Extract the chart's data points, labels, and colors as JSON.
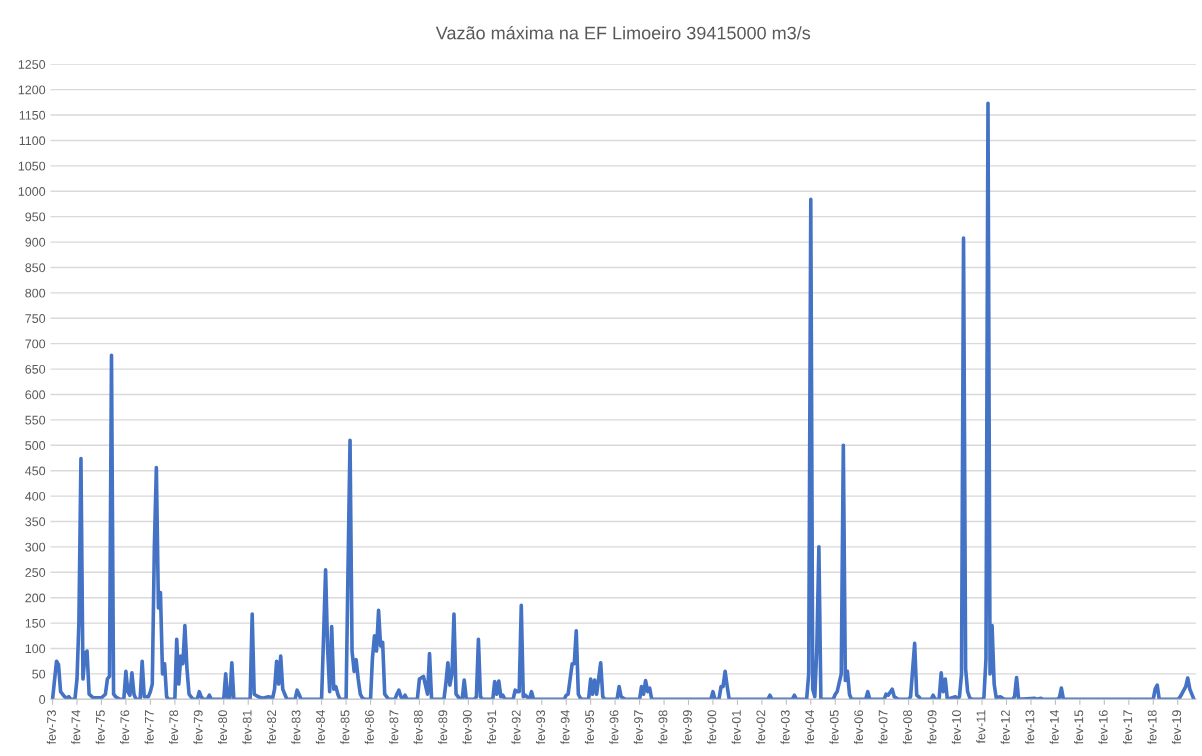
{
  "chart_data": {
    "type": "line",
    "title": "Vazão máxima na EF Limoeiro 39415000 m3/s",
    "x": [
      "1973-02",
      "1973-04",
      "1973-05",
      "1973-06",
      "1973-08",
      "1973-09",
      "1973-10",
      "1973-11",
      "1974-01",
      "1974-02",
      "1974-03",
      "1974-04",
      "1974-05",
      "1974-06",
      "1974-07",
      "1974-08",
      "1974-10",
      "1975-02",
      "1975-04",
      "1975-05",
      "1975-06",
      "1975-07",
      "1975-08",
      "1975-09",
      "1975-11",
      "1976-01",
      "1976-02",
      "1976-03",
      "1976-04",
      "1976-05",
      "1976-06",
      "1976-07",
      "1976-09",
      "1976-10",
      "1976-11",
      "1977-01",
      "1977-02",
      "1977-03",
      "1977-04",
      "1977-05",
      "1977-06",
      "1977-07",
      "1977-08",
      "1977-09",
      "1977-10",
      "1977-11",
      "1978-02",
      "1978-03",
      "1978-04",
      "1978-05",
      "1978-06",
      "1978-07",
      "1978-08",
      "1978-09",
      "1978-10",
      "1978-11",
      "1979-01",
      "1979-02",
      "1979-03",
      "1979-04",
      "1979-06",
      "1979-07",
      "1979-08",
      "1980-02",
      "1980-03",
      "1980-04",
      "1980-05",
      "1980-06",
      "1980-07",
      "1981-03",
      "1981-04",
      "1981-05",
      "1981-07",
      "1981-09",
      "1981-12",
      "1982-02",
      "1982-03",
      "1982-04",
      "1982-05",
      "1982-06",
      "1982-07",
      "1982-08",
      "1982-09",
      "1983-01",
      "1983-02",
      "1983-03",
      "1983-04",
      "1984-02",
      "1984-03",
      "1984-04",
      "1984-05",
      "1984-06",
      "1984-07",
      "1984-08",
      "1984-09",
      "1984-10",
      "1984-11",
      "1985-02",
      "1985-03",
      "1985-04",
      "1985-05",
      "1985-06",
      "1985-07",
      "1985-08",
      "1985-09",
      "1985-10",
      "1985-11",
      "1986-02",
      "1986-03",
      "1986-04",
      "1986-05",
      "1986-06",
      "1986-07",
      "1986-08",
      "1986-09",
      "1986-10",
      "1986-11",
      "1987-02",
      "1987-03",
      "1987-04",
      "1987-05",
      "1987-06",
      "1987-07",
      "1987-08",
      "1988-01",
      "1988-02",
      "1988-04",
      "1988-06",
      "1988-07",
      "1988-08",
      "1989-02",
      "1989-03",
      "1989-04",
      "1989-05",
      "1989-06",
      "1989-07",
      "1989-08",
      "1989-09",
      "1989-10",
      "1989-11",
      "1989-12",
      "1990-01",
      "1990-05",
      "1990-06",
      "1990-07",
      "1990-08",
      "1990-09",
      "1991-02",
      "1991-03",
      "1991-04",
      "1991-05",
      "1991-06",
      "1991-07",
      "1991-08",
      "1991-12",
      "1992-01",
      "1992-02",
      "1992-03",
      "1992-04",
      "1992-05",
      "1992-06",
      "1992-08",
      "1992-09",
      "1992-10",
      "1994-01",
      "1994-02",
      "1994-03",
      "1994-05",
      "1994-06",
      "1994-07",
      "1994-08",
      "1994-09",
      "1994-10",
      "1995-01",
      "1995-02",
      "1995-03",
      "1995-04",
      "1995-05",
      "1995-07",
      "1995-08",
      "1995-09",
      "1996-03",
      "1996-04",
      "1996-05",
      "1996-07",
      "1997-02",
      "1997-03",
      "1997-04",
      "1997-05",
      "1997-06",
      "1997-07",
      "1997-08",
      "2000-01",
      "2000-02",
      "2000-03",
      "2000-05",
      "2000-06",
      "2000-07",
      "2000-08",
      "2000-09",
      "2000-10",
      "2002-05",
      "2002-06",
      "2002-07",
      "2003-05",
      "2003-06",
      "2003-07",
      "2003-12",
      "2004-01",
      "2004-02",
      "2004-03",
      "2004-04",
      "2004-05",
      "2004-06",
      "2004-07",
      "2005-01",
      "2005-02",
      "2005-03",
      "2005-05",
      "2005-06",
      "2005-07",
      "2005-08",
      "2005-09",
      "2005-10",
      "2006-05",
      "2006-06",
      "2006-07",
      "2007-02",
      "2007-03",
      "2007-04",
      "2007-06",
      "2007-07",
      "2007-09",
      "2008-02",
      "2008-03",
      "2008-05",
      "2008-06",
      "2008-07",
      "2008-08",
      "2009-01",
      "2009-02",
      "2009-03",
      "2009-05",
      "2009-06",
      "2009-07",
      "2009-08",
      "2009-09",
      "2010-01",
      "2010-02",
      "2010-03",
      "2010-04",
      "2010-05",
      "2010-06",
      "2010-07",
      "2010-08",
      "2010-09",
      "2011-02",
      "2011-03",
      "2011-04",
      "2011-05",
      "2011-06",
      "2011-07",
      "2011-08",
      "2011-09",
      "2011-11",
      "2012-01",
      "2012-05",
      "2012-06",
      "2012-07",
      "2012-08",
      "2013-04",
      "2013-05",
      "2013-07",
      "2013-08",
      "2014-03",
      "2014-04",
      "2014-05",
      "2014-06",
      "2018-02",
      "2018-03",
      "2018-04",
      "2018-05",
      "2019-02",
      "2019-03",
      "2019-04",
      "2019-06",
      "2019-07",
      "2019-08",
      "2019-10"
    ],
    "series": [
      {
        "color": "#4472c4",
        "values": [
          0,
          75,
          68,
          15,
          5,
          2,
          5,
          0,
          0,
          40,
          150,
          474,
          40,
          90,
          95,
          10,
          3,
          3,
          10,
          40,
          45,
          677,
          10,
          5,
          0,
          0,
          55,
          15,
          8,
          52,
          10,
          0,
          0,
          75,
          5,
          5,
          15,
          30,
          300,
          456,
          180,
          210,
          50,
          70,
          5,
          0,
          0,
          118,
          30,
          85,
          70,
          145,
          60,
          10,
          5,
          0,
          0,
          15,
          5,
          0,
          0,
          8,
          0,
          0,
          50,
          0,
          0,
          72,
          0,
          0,
          168,
          10,
          5,
          2,
          5,
          3,
          20,
          75,
          30,
          85,
          20,
          10,
          0,
          0,
          18,
          10,
          0,
          0,
          120,
          255,
          100,
          15,
          143,
          20,
          25,
          10,
          0,
          0,
          250,
          510,
          95,
          55,
          78,
          40,
          10,
          3,
          0,
          0,
          80,
          125,
          95,
          175,
          105,
          112,
          10,
          5,
          0,
          0,
          10,
          18,
          5,
          0,
          8,
          0,
          0,
          40,
          45,
          10,
          90,
          0,
          0,
          30,
          72,
          28,
          50,
          168,
          10,
          5,
          0,
          0,
          38,
          0,
          0,
          5,
          118,
          5,
          0,
          0,
          35,
          10,
          36,
          5,
          8,
          0,
          0,
          18,
          15,
          15,
          185,
          5,
          8,
          0,
          15,
          0,
          0,
          8,
          10,
          70,
          70,
          135,
          10,
          2,
          0,
          0,
          40,
          10,
          38,
          10,
          72,
          5,
          0,
          0,
          25,
          5,
          0,
          0,
          25,
          10,
          37,
          15,
          22,
          0,
          0,
          15,
          0,
          0,
          25,
          25,
          55,
          25,
          0,
          0,
          8,
          0,
          0,
          8,
          0,
          0,
          50,
          984,
          20,
          5,
          100,
          300,
          0,
          0,
          10,
          15,
          50,
          500,
          37,
          55,
          10,
          0,
          0,
          15,
          0,
          0,
          10,
          8,
          20,
          5,
          0,
          0,
          5,
          110,
          8,
          5,
          0,
          0,
          8,
          0,
          0,
          52,
          15,
          40,
          0,
          5,
          0,
          5,
          50,
          908,
          60,
          15,
          3,
          0,
          0,
          3,
          80,
          1173,
          50,
          145,
          30,
          3,
          5,
          0,
          0,
          5,
          43,
          0,
          2,
          0,
          2,
          0,
          0,
          3,
          22,
          0,
          0,
          20,
          28,
          0,
          0,
          3,
          10,
          25,
          42,
          20,
          0
        ]
      }
    ],
    "xlim": [
      "1973-01",
      "2019-11"
    ],
    "xticks": [
      {
        "value": "1973-02",
        "label": "fev-73"
      },
      {
        "value": "1974-02",
        "label": "fev-74"
      },
      {
        "value": "1975-02",
        "label": "fev-75"
      },
      {
        "value": "1976-02",
        "label": "fev-76"
      },
      {
        "value": "1977-02",
        "label": "fev-77"
      },
      {
        "value": "1978-02",
        "label": "fev-78"
      },
      {
        "value": "1979-02",
        "label": "fev-79"
      },
      {
        "value": "1980-02",
        "label": "fev-80"
      },
      {
        "value": "1981-02",
        "label": "fev-81"
      },
      {
        "value": "1982-02",
        "label": "fev-82"
      },
      {
        "value": "1983-02",
        "label": "fev-83"
      },
      {
        "value": "1984-02",
        "label": "fev-84"
      },
      {
        "value": "1985-02",
        "label": "fev-85"
      },
      {
        "value": "1986-02",
        "label": "fev-86"
      },
      {
        "value": "1987-02",
        "label": "fev-87"
      },
      {
        "value": "1988-02",
        "label": "fev-88"
      },
      {
        "value": "1989-02",
        "label": "fev-89"
      },
      {
        "value": "1990-02",
        "label": "fev-90"
      },
      {
        "value": "1991-02",
        "label": "fev-91"
      },
      {
        "value": "1992-02",
        "label": "fev-92"
      },
      {
        "value": "1993-02",
        "label": "fev-93"
      },
      {
        "value": "1994-02",
        "label": "fev-94"
      },
      {
        "value": "1995-02",
        "label": "fev-95"
      },
      {
        "value": "1996-02",
        "label": "fev-96"
      },
      {
        "value": "1997-02",
        "label": "fev-97"
      },
      {
        "value": "1998-02",
        "label": "fev-98"
      },
      {
        "value": "1999-02",
        "label": "fev-99"
      },
      {
        "value": "2000-02",
        "label": "fev-00"
      },
      {
        "value": "2001-02",
        "label": "fev-01"
      },
      {
        "value": "2002-02",
        "label": "fev-02"
      },
      {
        "value": "2003-02",
        "label": "fev-03"
      },
      {
        "value": "2004-02",
        "label": "fev-04"
      },
      {
        "value": "2005-02",
        "label": "fev-05"
      },
      {
        "value": "2006-02",
        "label": "fev-06"
      },
      {
        "value": "2007-02",
        "label": "fev-07"
      },
      {
        "value": "2008-02",
        "label": "fev-08"
      },
      {
        "value": "2009-02",
        "label": "fev-09"
      },
      {
        "value": "2010-02",
        "label": "fev-10"
      },
      {
        "value": "2011-02",
        "label": "fev-11"
      },
      {
        "value": "2012-02",
        "label": "fev-12"
      },
      {
        "value": "2013-02",
        "label": "fev-13"
      },
      {
        "value": "2014-02",
        "label": "fev-14"
      },
      {
        "value": "2015-02",
        "label": "fev-15"
      },
      {
        "value": "2016-02",
        "label": "fev-16"
      },
      {
        "value": "2017-02",
        "label": "fev-17"
      },
      {
        "value": "2018-02",
        "label": "fev-18"
      },
      {
        "value": "2019-02",
        "label": "fev-19"
      }
    ],
    "ylim": [
      0,
      1250
    ],
    "yticks": [
      0,
      50,
      100,
      150,
      200,
      250,
      300,
      350,
      400,
      450,
      500,
      550,
      600,
      650,
      700,
      750,
      800,
      850,
      900,
      950,
      1000,
      1050,
      1100,
      1150,
      1200,
      1250
    ],
    "grid": "y",
    "marker": "none",
    "line_style": "solid"
  }
}
